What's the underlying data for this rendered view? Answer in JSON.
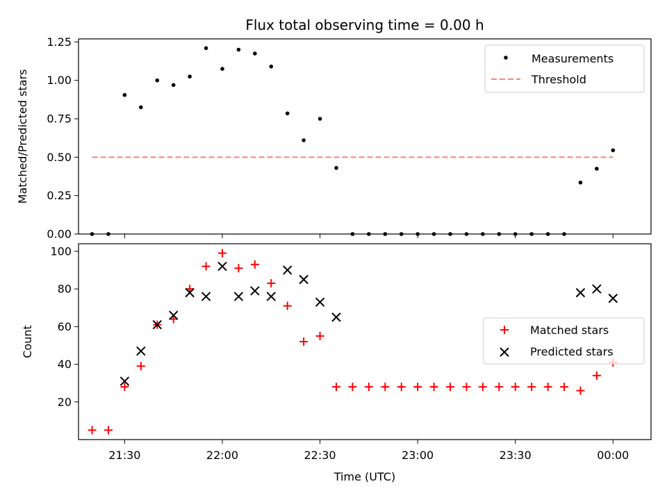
{
  "chart_data": [
    {
      "type": "scatter",
      "title": "Flux total observing time = 0.00 h",
      "xlabel": "",
      "ylabel": "Matched/Predicted stars",
      "ylim": [
        0,
        1.27
      ],
      "yticks": [
        "0.00",
        "0.25",
        "0.50",
        "0.75",
        "1.00",
        "1.25"
      ],
      "legend": {
        "placement": "top-right",
        "entries": [
          "Measurements",
          "Threshold"
        ]
      },
      "series": [
        {
          "name": "Measurements",
          "color": "#000000",
          "marker": "dot",
          "x": [
            "21:20",
            "21:25",
            "21:30",
            "21:35",
            "21:40",
            "21:45",
            "21:50",
            "21:55",
            "22:00",
            "22:05",
            "22:10",
            "22:15",
            "22:20",
            "22:25",
            "22:30",
            "22:35",
            "22:40",
            "22:45",
            "22:50",
            "22:55",
            "23:00",
            "23:05",
            "23:10",
            "23:15",
            "23:20",
            "23:25",
            "23:30",
            "23:35",
            "23:40",
            "23:45",
            "23:50",
            "23:55",
            "00:00"
          ],
          "y": [
            0.0,
            0.0,
            0.905,
            0.825,
            1.0,
            0.97,
            1.025,
            1.21,
            1.075,
            1.2,
            1.175,
            1.09,
            0.785,
            0.61,
            0.75,
            0.43,
            0.0,
            0.0,
            0.0,
            0.0,
            0.0,
            0.0,
            0.0,
            0.0,
            0.0,
            0.0,
            0.0,
            0.0,
            0.0,
            0.0,
            0.335,
            0.425,
            0.545
          ]
        },
        {
          "name": "Threshold",
          "color": "#ff7f7f",
          "style": "dashed",
          "x": [
            "21:20",
            "00:00"
          ],
          "y": [
            0.5,
            0.5
          ]
        }
      ]
    },
    {
      "type": "scatter",
      "xlabel": "Time (UTC)",
      "ylabel": "Count",
      "ylim": [
        0,
        104
      ],
      "yticks": [
        "20",
        "40",
        "60",
        "80",
        "100"
      ],
      "xticks": [
        "21:30",
        "22:00",
        "22:30",
        "23:00",
        "23:30",
        "00:00"
      ],
      "legend": {
        "placement": "center-right",
        "entries": [
          "Matched stars",
          "Predicted stars"
        ]
      },
      "series": [
        {
          "name": "Matched stars",
          "color": "#ff0000",
          "marker": "plus",
          "x": [
            "21:20",
            "21:25",
            "21:30",
            "21:35",
            "21:40",
            "21:45",
            "21:50",
            "21:55",
            "22:00",
            "22:05",
            "22:10",
            "22:15",
            "22:20",
            "22:25",
            "22:30",
            "22:35",
            "22:40",
            "22:45",
            "22:50",
            "22:55",
            "23:00",
            "23:05",
            "23:10",
            "23:15",
            "23:20",
            "23:25",
            "23:30",
            "23:35",
            "23:40",
            "23:45",
            "23:50",
            "23:55",
            "00:00"
          ],
          "y": [
            5,
            5,
            28,
            39,
            61,
            64,
            80,
            92,
            99,
            91,
            93,
            83,
            71,
            52,
            55,
            28,
            28,
            28,
            28,
            28,
            28,
            28,
            28,
            28,
            28,
            28,
            28,
            28,
            28,
            28,
            26,
            34,
            41
          ]
        },
        {
          "name": "Predicted stars",
          "color": "#000000",
          "marker": "x",
          "x": [
            "21:30",
            "21:35",
            "21:40",
            "21:45",
            "21:50",
            "21:55",
            "22:00",
            "22:05",
            "22:10",
            "22:15",
            "22:20",
            "22:25",
            "22:30",
            "22:35",
            "23:50",
            "23:55",
            "00:00"
          ],
          "y": [
            31,
            47,
            61,
            66,
            78,
            76,
            92,
            76,
            79,
            76,
            90,
            85,
            73,
            65,
            78,
            80,
            75
          ]
        }
      ]
    }
  ]
}
